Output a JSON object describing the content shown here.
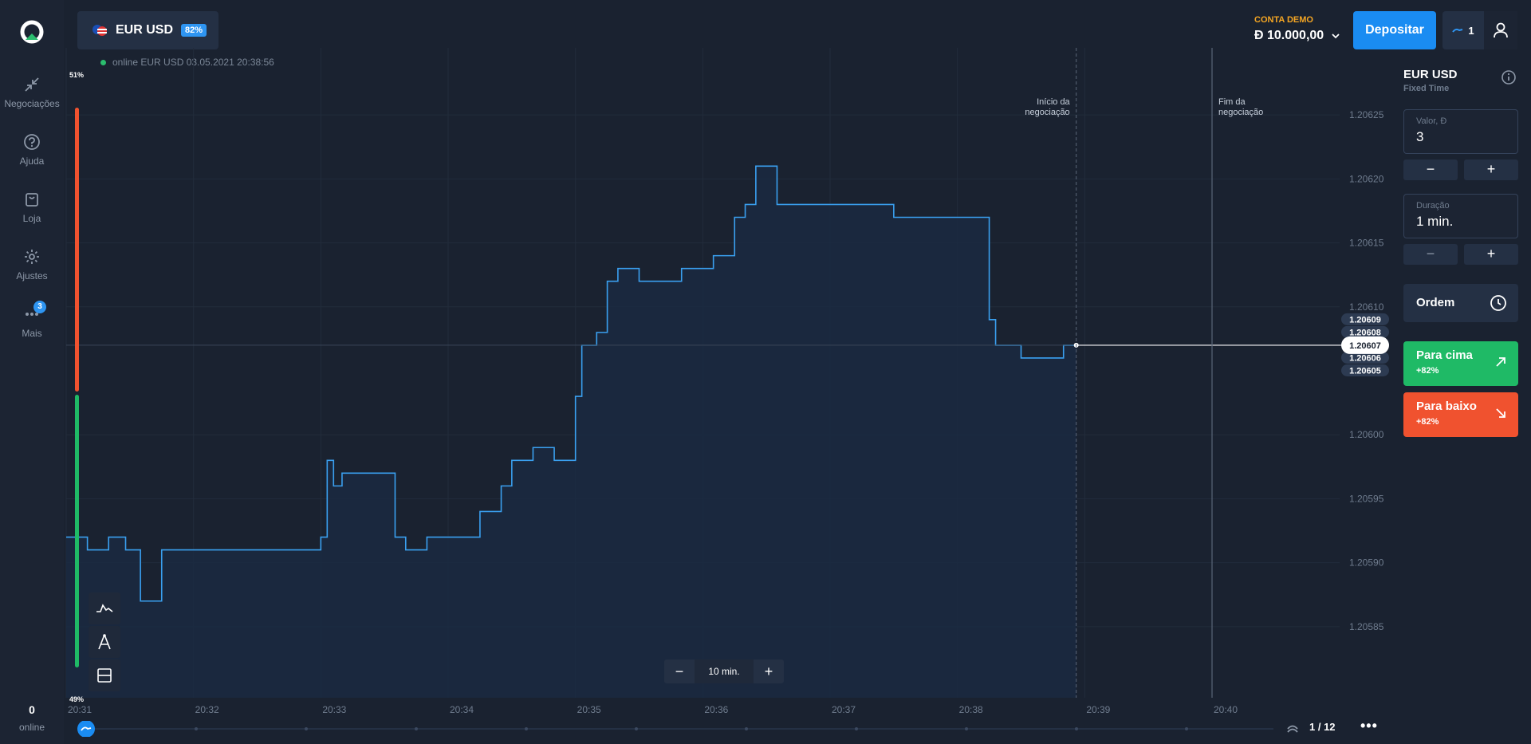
{
  "sidebar": {
    "items": [
      {
        "label": "Negociações",
        "icon": "trades-arrows-icon"
      },
      {
        "label": "Ajuda",
        "icon": "help-icon"
      },
      {
        "label": "Loja",
        "icon": "shop-bag-icon"
      },
      {
        "label": "Ajustes",
        "icon": "gear-icon"
      },
      {
        "label": "Mais",
        "icon": "more-dots-icon",
        "badge": "3"
      }
    ],
    "online_count": "0",
    "online_label": "online"
  },
  "header": {
    "asset": "EUR USD",
    "payout": "82%",
    "status": "online EUR USD  03.05.2021 20:38:56",
    "account_type": "CONTA DEMO",
    "balance": "Đ 10.000,00",
    "deposit_label": "Depositar",
    "open_trades": "1"
  },
  "panel": {
    "asset": "EUR USD",
    "mode": "Fixed Time",
    "amount_label": "Valor, Đ",
    "amount_value": "3",
    "duration_label": "Duração",
    "duration_value": "1 min.",
    "minus": "−",
    "plus": "+",
    "order_label": "Ordem",
    "up_label": "Para cima",
    "up_payout": "+82%",
    "down_label": "Para baixo",
    "down_payout": "+82%"
  },
  "chart_data": {
    "type": "line",
    "ylim": [
      1.20581,
      1.20629
    ],
    "xlabel": "",
    "ylabel": "",
    "yticks": [
      "1.20625",
      "1.20620",
      "1.20615",
      "1.20610",
      "1.20600",
      "1.20595",
      "1.20590",
      "1.20585"
    ],
    "xticks": [
      "20:31",
      "20:32",
      "20:33",
      "20:34",
      "20:35",
      "20:36",
      "20:37",
      "20:38",
      "20:39",
      "20:40"
    ],
    "current_price": "1.20607",
    "nearby_prices": [
      "1.20609",
      "1.20608",
      "1.20606",
      "1.20605"
    ],
    "sentiment_top": "51%",
    "sentiment_bottom": "49%",
    "trade_start_label": "Início da negociação",
    "trade_end_label": "Fim da negociação",
    "series": [
      {
        "color": "#3aa0f0",
        "x": [
          "20:31:00",
          "20:31:10",
          "20:31:20",
          "20:31:28",
          "20:31:35",
          "20:31:45",
          "20:32:00",
          "20:32:15",
          "20:32:30",
          "20:32:45",
          "20:33:00",
          "20:33:03",
          "20:33:06",
          "20:33:10",
          "20:33:20",
          "20:33:35",
          "20:33:40",
          "20:33:50",
          "20:34:05",
          "20:34:15",
          "20:34:25",
          "20:34:30",
          "20:34:40",
          "20:34:50",
          "20:35:00",
          "20:35:03",
          "20:35:10",
          "20:35:15",
          "20:35:20",
          "20:35:30",
          "20:35:40",
          "20:35:50",
          "20:36:00",
          "20:36:05",
          "20:36:15",
          "20:36:20",
          "20:36:25",
          "20:36:35",
          "20:36:50",
          "20:37:10",
          "20:37:30",
          "20:37:50",
          "20:38:10",
          "20:38:15",
          "20:38:18",
          "20:38:22",
          "20:38:30",
          "20:38:40",
          "20:38:50",
          "20:38:56"
        ],
        "values": [
          1.20592,
          1.20591,
          1.20592,
          1.20591,
          1.20587,
          1.20591,
          1.20591,
          1.20591,
          1.20591,
          1.20591,
          1.20592,
          1.20598,
          1.20596,
          1.20597,
          1.20597,
          1.20592,
          1.20591,
          1.20592,
          1.20592,
          1.20594,
          1.20596,
          1.20598,
          1.20599,
          1.20598,
          1.20603,
          1.20607,
          1.20608,
          1.20612,
          1.20613,
          1.20612,
          1.20612,
          1.20613,
          1.20613,
          1.20614,
          1.20617,
          1.20618,
          1.20621,
          1.20618,
          1.20618,
          1.20618,
          1.20617,
          1.20617,
          1.20617,
          1.20609,
          1.20607,
          1.20607,
          1.20606,
          1.20606,
          1.20607,
          1.20607
        ]
      }
    ]
  },
  "chart_tools": {
    "zoom_minus": "−",
    "zoom_value": "10 min.",
    "zoom_plus": "+"
  },
  "pager": "1 / 12",
  "more": "•••",
  "colors": {
    "accent": "#1a8cf2",
    "up": "#1fba66",
    "down": "#f0522f",
    "demo": "#f5a623",
    "line": "#3aa0f0"
  }
}
